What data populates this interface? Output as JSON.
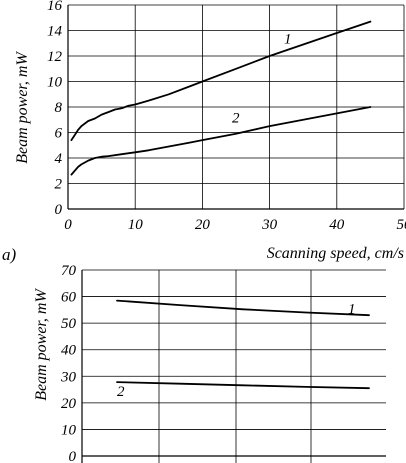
{
  "chart_data": [
    {
      "panel": "a)",
      "type": "line",
      "xlabel": "Scanning speed, cm/s",
      "ylabel": "Beam power, mW",
      "xlim": [
        0,
        50
      ],
      "ylim": [
        0,
        16
      ],
      "x_ticks": [
        0,
        10,
        20,
        30,
        40,
        50
      ],
      "y_ticks": [
        0,
        2,
        4,
        6,
        8,
        10,
        12,
        14,
        16
      ],
      "grid": true,
      "series": [
        {
          "name": "1",
          "x": [
            0.5,
            1,
            1.5,
            2,
            3,
            4,
            5,
            6,
            7,
            8,
            9,
            10,
            12,
            15,
            18,
            20,
            25,
            30,
            35,
            40,
            45
          ],
          "y": [
            5.4,
            5.8,
            6.2,
            6.5,
            6.9,
            7.1,
            7.4,
            7.6,
            7.8,
            7.9,
            8.1,
            8.2,
            8.5,
            9.0,
            9.6,
            10.0,
            11.0,
            12.0,
            12.9,
            13.8,
            14.7
          ]
        },
        {
          "name": "2",
          "x": [
            0.5,
            1,
            1.5,
            2,
            3,
            4,
            5,
            6,
            8,
            10,
            12,
            15,
            18,
            20,
            25,
            30,
            35,
            40,
            45
          ],
          "y": [
            2.7,
            3.0,
            3.3,
            3.5,
            3.8,
            4.0,
            4.1,
            4.15,
            4.3,
            4.45,
            4.6,
            4.9,
            5.2,
            5.4,
            5.9,
            6.5,
            7.0,
            7.5,
            8.0
          ]
        }
      ]
    },
    {
      "type": "line",
      "ylabel": "Beam power, mW",
      "ylim": [
        0,
        70
      ],
      "y_ticks": [
        0,
        10,
        20,
        30,
        40,
        50,
        60,
        70
      ],
      "grid": true,
      "series": [
        {
          "name": "1",
          "x": [
            0,
            10,
            20,
            30,
            40
          ],
          "y": [
            58.5,
            56.8,
            55.2,
            54.0,
            53.0
          ]
        },
        {
          "name": "2",
          "x": [
            0,
            10,
            20,
            30,
            40
          ],
          "y": [
            27.8,
            27.2,
            26.6,
            26.0,
            25.5
          ]
        }
      ]
    }
  ]
}
